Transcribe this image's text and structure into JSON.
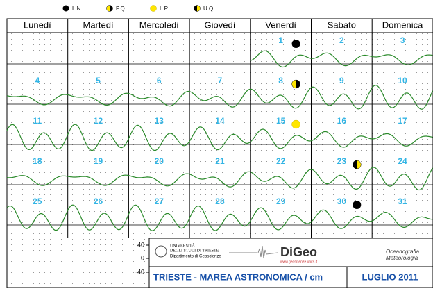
{
  "legend": [
    {
      "label": "L.N.",
      "days": [
        1,
        30
      ]
    },
    {
      "label": "P.Q.",
      "days": [
        8
      ]
    },
    {
      "label": "L.P.",
      "days": [
        15
      ]
    },
    {
      "label": "U.Q.",
      "days": [
        23
      ]
    }
  ],
  "weekdays": [
    "Lunedì",
    "Martedì",
    "Mercoledì",
    "Giovedì",
    "Venerdì",
    "Sabato",
    "Domenica"
  ],
  "weeks": [
    [
      null,
      null,
      null,
      null,
      1,
      2,
      3
    ],
    [
      4,
      5,
      6,
      7,
      8,
      9,
      10
    ],
    [
      11,
      12,
      13,
      14,
      15,
      16,
      17
    ],
    [
      18,
      19,
      20,
      21,
      22,
      23,
      24
    ],
    [
      25,
      26,
      27,
      28,
      29,
      30,
      31
    ]
  ],
  "scale": [
    "40",
    "0",
    "-40"
  ],
  "footer": {
    "university": "UNIVERSITÀ",
    "university2": "DEGLI STUDI DI TRIESTE",
    "department": "Dipartimento di Geoscienze",
    "logo": "DiGeo",
    "url": "www.geoscienze.units.it",
    "ocean": "Oceanografia",
    "meteo": "Meteorologia",
    "title": "TRIESTE - MAREA ASTRONOMICA / cm",
    "month": "LUGLIO 2011"
  }
}
